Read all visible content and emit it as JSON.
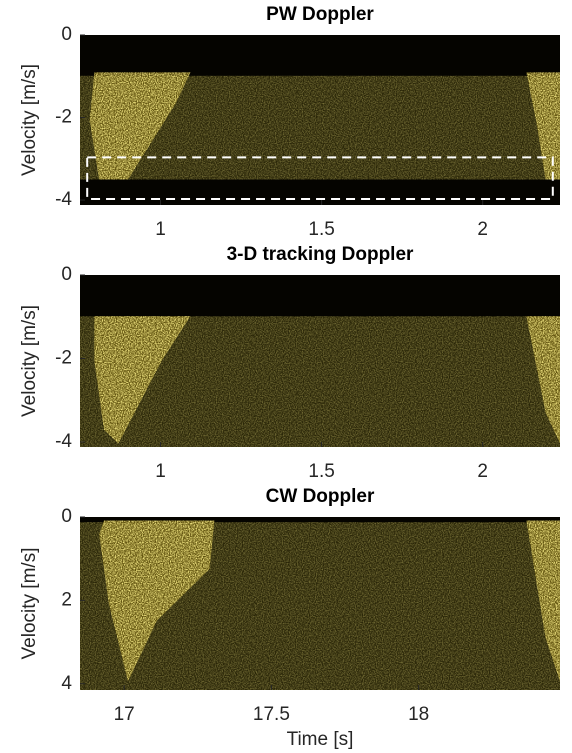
{
  "chart_data": [
    {
      "type": "spectrogram",
      "title": "PW Doppler",
      "ylabel": "Velocity [m/s]",
      "xlim": [
        0.75,
        2.24
      ],
      "xticks": [
        1,
        1.5,
        2
      ],
      "ylim": [
        -4.12,
        0
      ],
      "yticks": [
        -4,
        -2,
        0
      ]
    },
    {
      "type": "spectrogram",
      "title": "3-D tracking Doppler",
      "ylabel": "Velocity [m/s]",
      "xlim": [
        0.75,
        2.24
      ],
      "xticks": [
        1,
        1.5,
        2
      ],
      "ylim": [
        -4.12,
        0
      ],
      "yticks": [
        -4,
        -2,
        0
      ]
    },
    {
      "type": "spectrogram",
      "title": "CW Doppler",
      "ylabel": "Velocity [m/s]",
      "xlabel": "Time [s]",
      "xlim": [
        16.85,
        18.48
      ],
      "xticks": [
        17,
        17.5,
        18
      ],
      "ylim": [
        4.15,
        0
      ],
      "yticks": [
        4,
        2,
        0
      ]
    }
  ]
}
